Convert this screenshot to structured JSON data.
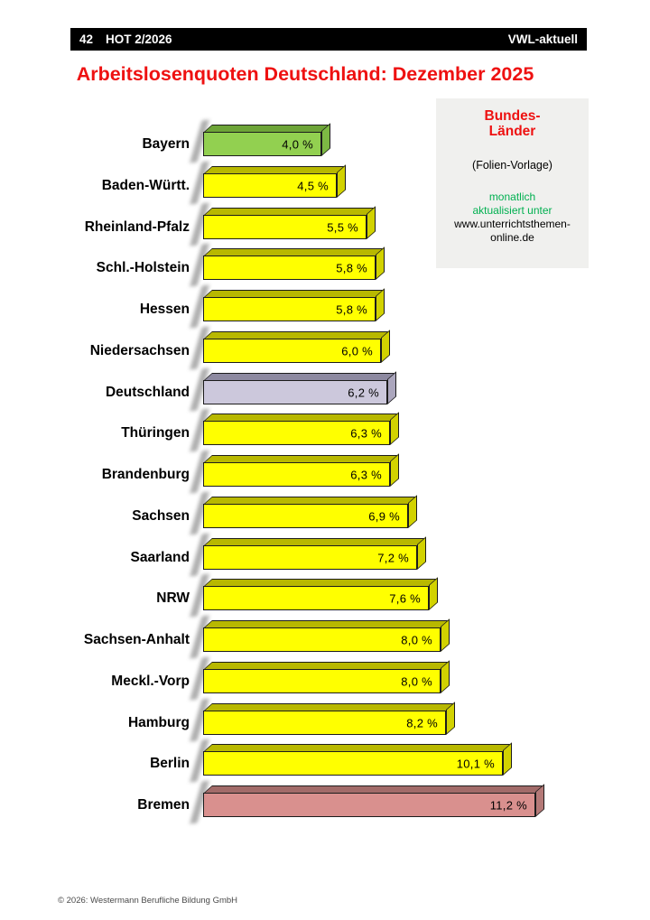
{
  "header": {
    "page_number": "42",
    "issue": "HOT 2/2026",
    "brand": "VWL-aktuell",
    "bg_color": "#000000",
    "text_color": "#ffffff"
  },
  "title": {
    "text": "Arbeitslosenquoten Deutschland: Dezember 2025",
    "color": "#ee1111"
  },
  "info_box": {
    "bg_color": "#f0f0ee",
    "title_line1": "Bundes-",
    "title_line2": "Länder",
    "title_color": "#ee1111",
    "subtitle": "(Folien-Vorlage)",
    "note_line1": "monatlich",
    "note_line2": "aktualisiert unter",
    "note_color": "#00b050",
    "url_line1": "www.unterrichtsthemen-",
    "url_line2": "online.de"
  },
  "footer": {
    "copyright": "© 2026: Westermann Berufliche Bildung GmbH"
  },
  "chart_data": {
    "type": "bar",
    "orientation": "horizontal",
    "title": "Arbeitslosenquoten Deutschland: Dezember 2025",
    "unit": "%",
    "xlim": [
      0,
      11.2
    ],
    "grid": false,
    "legend_position": "none",
    "categories": [
      "Bayern",
      "Baden-Württ.",
      "Rheinland-Pfalz",
      "Schl.-Holstein",
      "Hessen",
      "Niedersachsen",
      "Deutschland",
      "Thüringen",
      "Brandenburg",
      "Sachsen",
      "Saarland",
      "NRW",
      "Sachsen-Anhalt",
      "Meckl.-Vorp",
      "Hamburg",
      "Berlin",
      "Bremen"
    ],
    "values": [
      4.0,
      4.5,
      5.5,
      5.8,
      5.8,
      6.0,
      6.2,
      6.3,
      6.3,
      6.9,
      7.2,
      7.6,
      8.0,
      8.0,
      8.2,
      10.1,
      11.2
    ],
    "value_labels": [
      "4,0 %",
      "4,5 %",
      "5,5 %",
      "5,8 %",
      "5,8 %",
      "6,0 %",
      "6,2 %",
      "6,3 %",
      "6,3 %",
      "6,9 %",
      "7,2 %",
      "7,6 %",
      "8,0 %",
      "8,0 %",
      "8,2 %",
      "10,1 %",
      "11,2 %"
    ],
    "bar_color_keys": [
      "green",
      "yellow",
      "yellow",
      "yellow",
      "yellow",
      "yellow",
      "gray",
      "yellow",
      "yellow",
      "yellow",
      "yellow",
      "yellow",
      "yellow",
      "yellow",
      "yellow",
      "yellow",
      "salmon"
    ],
    "palette": {
      "yellow": {
        "front": "#ffff00",
        "top": "#b8b800",
        "side": "#d2d200"
      },
      "green": {
        "front": "#92d050",
        "top": "#6da437",
        "side": "#7db944"
      },
      "gray": {
        "front": "#ccc8dc",
        "top": "#8d89a0",
        "side": "#aba6bd"
      },
      "salmon": {
        "front": "#d9908e",
        "top": "#a26b69",
        "side": "#b47977"
      }
    }
  }
}
